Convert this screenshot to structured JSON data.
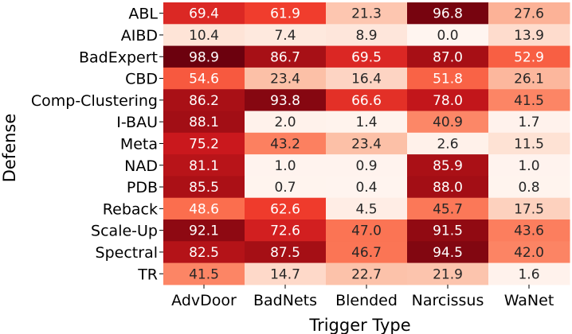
{
  "chart_data": {
    "type": "heatmap",
    "xlabel": "Trigger Type",
    "ylabel": "Defense",
    "x_categories": [
      "AdvDoor",
      "BadNets",
      "Blended",
      "Narcissus",
      "WaNet"
    ],
    "y_categories": [
      "ABL",
      "AIBD",
      "BadExpert",
      "CBD",
      "Comp-Clustering",
      "I-BAU",
      "Meta",
      "NAD",
      "PDB",
      "Reback",
      "Scale-Up",
      "Spectral",
      "TR"
    ],
    "values": [
      [
        69.4,
        61.9,
        21.3,
        96.8,
        27.6
      ],
      [
        10.4,
        7.4,
        8.9,
        0.0,
        13.9
      ],
      [
        98.9,
        86.7,
        69.5,
        87.0,
        52.9
      ],
      [
        54.6,
        23.4,
        16.4,
        51.8,
        26.1
      ],
      [
        86.2,
        93.8,
        66.6,
        78.0,
        41.5
      ],
      [
        88.1,
        2.0,
        1.4,
        40.9,
        1.7
      ],
      [
        75.2,
        43.2,
        23.4,
        2.6,
        11.5
      ],
      [
        81.1,
        1.0,
        0.9,
        85.9,
        1.0
      ],
      [
        85.5,
        0.7,
        0.4,
        88.0,
        0.8
      ],
      [
        48.6,
        62.6,
        4.5,
        45.7,
        17.5
      ],
      [
        92.1,
        72.6,
        47.0,
        91.5,
        43.6
      ],
      [
        82.5,
        87.5,
        46.7,
        94.5,
        42.0
      ],
      [
        41.5,
        14.7,
        22.7,
        21.9,
        1.6
      ]
    ],
    "value_range": [
      0,
      100
    ],
    "colormap": "Reds"
  }
}
